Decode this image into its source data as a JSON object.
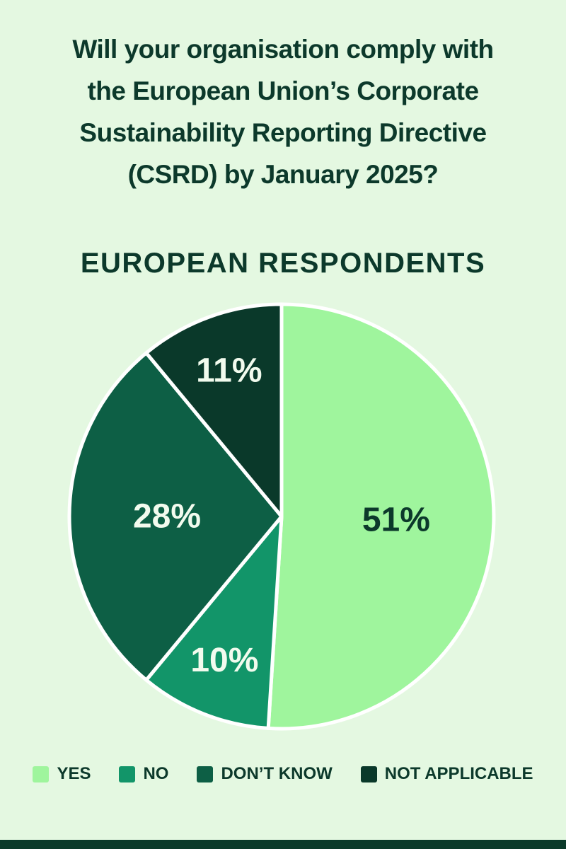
{
  "header": {
    "title": "Will your organisation comply with the European Union’s Corporate Sustainability Reporting Directive (CSRD) by January 2025?",
    "title_lines": [
      "Will your organisation comply with",
      "the European Union’s Corporate",
      "Sustainability Reporting Directive",
      "(CSRD) by January 2025?"
    ],
    "subtitle": "EUROPEAN RESPONDENTS"
  },
  "colors": {
    "background": "#e4f8e1",
    "text": "#0c392b",
    "footer_bar": "#0b3a2a",
    "slice_border": "#ffffff"
  },
  "chart_data": {
    "type": "pie",
    "title": "EUROPEAN RESPONDENTS",
    "categories": [
      "YES",
      "NO",
      "DON’T KNOW",
      "NOT APPLICABLE"
    ],
    "values": [
      51,
      10,
      28,
      11
    ],
    "labels": [
      "51%",
      "10%",
      "28%",
      "11%"
    ],
    "slice_colors": [
      "#9ff59d",
      "#129569",
      "#0d5f45",
      "#0a392a"
    ],
    "label_colors": [
      "#0c392b",
      "#f2fbee",
      "#f2fbee",
      "#f2fbee"
    ],
    "start_angle_deg": 0,
    "direction": "clockwise",
    "legend_position": "bottom"
  }
}
